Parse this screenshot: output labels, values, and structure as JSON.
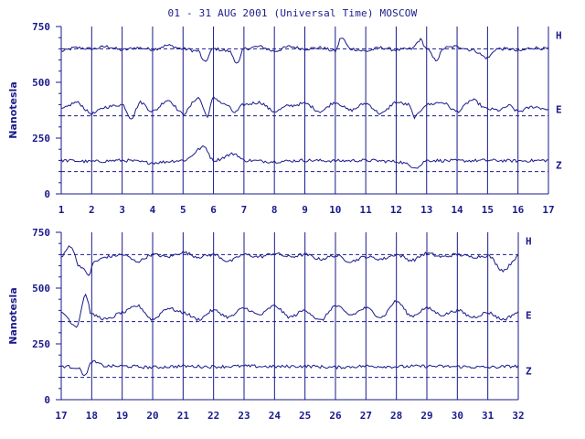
{
  "title": "01 - 31 AUG 2001 (Universal Time) MOSCOW",
  "chart_data": [
    {
      "type": "line",
      "ylabel": "Nanotesla",
      "xlim": [
        1,
        17
      ],
      "ylim": [
        0,
        750
      ],
      "x_ticks": [
        "1",
        "2",
        "3",
        "4",
        "5",
        "6",
        "7",
        "8",
        "9",
        "10",
        "11",
        "12",
        "13",
        "14",
        "15",
        "16",
        "17"
      ],
      "y_ticks": [
        "0",
        "250",
        "500",
        "750"
      ],
      "reference_lines": [
        650,
        350,
        100
      ],
      "series": [
        {
          "name": "H",
          "base": 650,
          "points": [
            [
              1,
              640
            ],
            [
              1.5,
              655
            ],
            [
              2,
              650
            ],
            [
              2.5,
              660
            ],
            [
              3,
              645
            ],
            [
              3.5,
              655
            ],
            [
              4,
              648
            ],
            [
              4.5,
              665
            ],
            [
              5,
              650
            ],
            [
              5.5,
              640
            ],
            [
              5.7,
              590
            ],
            [
              6,
              650
            ],
            [
              6.5,
              640
            ],
            [
              6.8,
              585
            ],
            [
              7,
              650
            ],
            [
              7.5,
              660
            ],
            [
              8,
              640
            ],
            [
              8.5,
              660
            ],
            [
              9,
              650
            ],
            [
              9.5,
              655
            ],
            [
              10,
              640
            ],
            [
              10.2,
              700
            ],
            [
              10.5,
              650
            ],
            [
              11,
              640
            ],
            [
              11.5,
              655
            ],
            [
              12,
              645
            ],
            [
              12.5,
              650
            ],
            [
              12.8,
              690
            ],
            [
              13,
              650
            ],
            [
              13.3,
              600
            ],
            [
              13.6,
              655
            ],
            [
              14,
              660
            ],
            [
              14.5,
              645
            ],
            [
              15,
              610
            ],
            [
              15.3,
              650
            ],
            [
              15.7,
              650
            ],
            [
              16,
              640
            ],
            [
              16.5,
              655
            ],
            [
              17,
              650
            ]
          ]
        },
        {
          "name": "E",
          "base": 350,
          "points": [
            [
              1,
              380
            ],
            [
              1.5,
              410
            ],
            [
              2,
              360
            ],
            [
              2.5,
              390
            ],
            [
              3,
              400
            ],
            [
              3.3,
              340
            ],
            [
              3.6,
              410
            ],
            [
              4,
              370
            ],
            [
              4.5,
              420
            ],
            [
              5,
              360
            ],
            [
              5.5,
              430
            ],
            [
              5.8,
              350
            ],
            [
              6,
              430
            ],
            [
              6.4,
              400
            ],
            [
              6.7,
              365
            ],
            [
              7,
              400
            ],
            [
              7.5,
              410
            ],
            [
              8,
              370
            ],
            [
              8.5,
              395
            ],
            [
              9,
              405
            ],
            [
              9.5,
              370
            ],
            [
              10,
              410
            ],
            [
              10.5,
              375
            ],
            [
              11,
              405
            ],
            [
              11.5,
              360
            ],
            [
              12,
              410
            ],
            [
              12.4,
              400
            ],
            [
              12.6,
              345
            ],
            [
              13,
              400
            ],
            [
              13.5,
              410
            ],
            [
              14,
              370
            ],
            [
              14.5,
              420
            ],
            [
              15,
              380
            ],
            [
              15.4,
              375
            ],
            [
              15.7,
              395
            ],
            [
              16,
              370
            ],
            [
              16.5,
              390
            ],
            [
              17,
              380
            ]
          ]
        },
        {
          "name": "Z",
          "base": 100,
          "points": [
            [
              1,
              150
            ],
            [
              2,
              145
            ],
            [
              3,
              150
            ],
            [
              4,
              140
            ],
            [
              5,
              150
            ],
            [
              5.7,
              210
            ],
            [
              6,
              150
            ],
            [
              6.7,
              180
            ],
            [
              7,
              150
            ],
            [
              8,
              145
            ],
            [
              9,
              150
            ],
            [
              10,
              148
            ],
            [
              11,
              150
            ],
            [
              12,
              145
            ],
            [
              12.7,
              120
            ],
            [
              13,
              150
            ],
            [
              14,
              148
            ],
            [
              15,
              150
            ],
            [
              16,
              148
            ],
            [
              17,
              150
            ]
          ]
        }
      ]
    },
    {
      "type": "line",
      "ylabel": "Nanotesla",
      "xlim": [
        17,
        32
      ],
      "ylim": [
        0,
        750
      ],
      "x_ticks": [
        "17",
        "18",
        "19",
        "20",
        "21",
        "22",
        "23",
        "24",
        "25",
        "26",
        "27",
        "28",
        "29",
        "30",
        "31",
        "32"
      ],
      "y_ticks": [
        "0",
        "250",
        "500",
        "750"
      ],
      "reference_lines": [
        650,
        350,
        100
      ],
      "series": [
        {
          "name": "H",
          "base": 650,
          "points": [
            [
              17,
              640
            ],
            [
              17.3,
              690
            ],
            [
              17.6,
              600
            ],
            [
              17.9,
              560
            ],
            [
              18.1,
              620
            ],
            [
              18.5,
              640
            ],
            [
              19,
              650
            ],
            [
              19.5,
              620
            ],
            [
              20,
              650
            ],
            [
              20.5,
              640
            ],
            [
              21,
              660
            ],
            [
              21.5,
              640
            ],
            [
              22,
              650
            ],
            [
              22.5,
              620
            ],
            [
              23,
              650
            ],
            [
              23.5,
              640
            ],
            [
              24,
              655
            ],
            [
              24.5,
              640
            ],
            [
              25,
              650
            ],
            [
              25.5,
              630
            ],
            [
              26,
              645
            ],
            [
              26.5,
              620
            ],
            [
              27,
              640
            ],
            [
              27.5,
              630
            ],
            [
              28,
              650
            ],
            [
              28.5,
              625
            ],
            [
              29,
              655
            ],
            [
              29.5,
              640
            ],
            [
              30,
              650
            ],
            [
              30.5,
              640
            ],
            [
              31,
              645
            ],
            [
              31.5,
              580
            ],
            [
              32,
              640
            ]
          ]
        },
        {
          "name": "E",
          "base": 350,
          "points": [
            [
              17,
              390
            ],
            [
              17.5,
              330
            ],
            [
              17.8,
              470
            ],
            [
              18,
              380
            ],
            [
              18.5,
              360
            ],
            [
              19,
              390
            ],
            [
              19.5,
              420
            ],
            [
              20,
              360
            ],
            [
              20.5,
              410
            ],
            [
              21,
              390
            ],
            [
              21.5,
              360
            ],
            [
              22,
              400
            ],
            [
              22.5,
              370
            ],
            [
              23,
              410
            ],
            [
              23.5,
              380
            ],
            [
              24,
              420
            ],
            [
              24.5,
              370
            ],
            [
              25,
              400
            ],
            [
              25.5,
              355
            ],
            [
              26,
              420
            ],
            [
              26.5,
              380
            ],
            [
              27,
              410
            ],
            [
              27.5,
              370
            ],
            [
              28,
              440
            ],
            [
              28.5,
              375
            ],
            [
              29,
              410
            ],
            [
              29.5,
              380
            ],
            [
              30,
              400
            ],
            [
              30.5,
              370
            ],
            [
              31,
              390
            ],
            [
              31.5,
              360
            ],
            [
              32,
              390
            ]
          ]
        },
        {
          "name": "Z",
          "base": 100,
          "points": [
            [
              17,
              150
            ],
            [
              17.5,
              145
            ],
            [
              17.8,
              110
            ],
            [
              18,
              170
            ],
            [
              18.5,
              150
            ],
            [
              19,
              150
            ],
            [
              20,
              145
            ],
            [
              21,
              150
            ],
            [
              22,
              148
            ],
            [
              23,
              150
            ],
            [
              24,
              148
            ],
            [
              25,
              150
            ],
            [
              26,
              145
            ],
            [
              27,
              150
            ],
            [
              28,
              148
            ],
            [
              29,
              150
            ],
            [
              30,
              148
            ],
            [
              31,
              145
            ],
            [
              32,
              150
            ]
          ]
        }
      ]
    }
  ],
  "colors": {
    "line": "#1a1a8c",
    "axis": "#1a1a8c",
    "text": "#1a1a8c",
    "background": "#ffffff"
  }
}
